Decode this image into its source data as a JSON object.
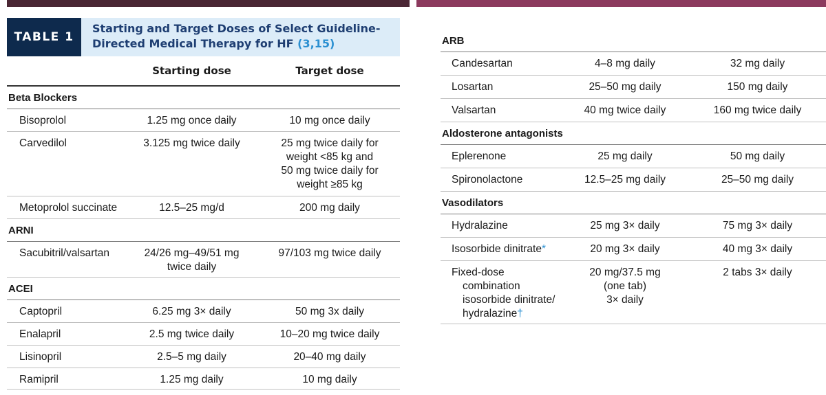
{
  "table_tag": "TABLE 1",
  "title_line1": "Starting and Target Doses of Select Guideline-",
  "title_line2": "Directed Medical Therapy for HF",
  "title_ref": "(3,15)",
  "columns": {
    "starting": "Starting dose",
    "target": "Target dose"
  },
  "sections": {
    "beta": "Beta Blockers",
    "arni": "ARNI",
    "acei": "ACEI",
    "arb": "ARB",
    "aldo": "Aldosterone antagonists",
    "vaso": "Vasodilators"
  },
  "rows": {
    "bisoprolol": {
      "drug": "Bisoprolol",
      "start": "1.25 mg once daily",
      "target": "10 mg once daily"
    },
    "carvedilol": {
      "drug": "Carvedilol",
      "start": "3.125 mg twice daily",
      "target_l1": "25 mg twice daily for",
      "target_l2": "weight <85 kg and",
      "target_l3": "50 mg twice daily for",
      "target_l4": "weight ≥85 kg"
    },
    "metoprolol": {
      "drug": "Metoprolol succinate",
      "start": "12.5–25 mg/d",
      "target": "200 mg daily"
    },
    "sacubitril": {
      "drug": "Sacubitril/valsartan",
      "start_l1": "24/26 mg–49/51 mg",
      "start_l2": "twice daily",
      "target": "97/103 mg twice daily"
    },
    "captopril": {
      "drug": "Captopril",
      "start": "6.25 mg 3× daily",
      "target": "50 mg 3x daily"
    },
    "enalapril": {
      "drug": "Enalapril",
      "start": "2.5 mg twice daily",
      "target": "10–20 mg twice daily"
    },
    "lisinopril": {
      "drug": "Lisinopril",
      "start": "2.5–5 mg daily",
      "target": "20–40 mg daily"
    },
    "ramipril": {
      "drug": "Ramipril",
      "start": "1.25 mg daily",
      "target": "10 mg daily"
    },
    "candesartan": {
      "drug": "Candesartan",
      "start": "4–8 mg daily",
      "target": "32 mg daily"
    },
    "losartan": {
      "drug": "Losartan",
      "start": "25–50 mg daily",
      "target": "150 mg daily"
    },
    "valsartan": {
      "drug": "Valsartan",
      "start": "40 mg twice daily",
      "target": "160 mg twice daily"
    },
    "eplerenone": {
      "drug": "Eplerenone",
      "start": "25 mg daily",
      "target": "50 mg daily"
    },
    "spironolactone": {
      "drug": "Spironolactone",
      "start": "12.5–25 mg daily",
      "target": "25–50 mg daily"
    },
    "hydralazine": {
      "drug": "Hydralazine",
      "start": "25 mg 3× daily",
      "target": "75 mg 3× daily"
    },
    "isosorbide": {
      "drug": "Isosorbide dinitrate",
      "mark": "*",
      "start": "20 mg 3× daily",
      "target": "40 mg 3× daily"
    },
    "fixed": {
      "drug_l1": "Fixed-dose",
      "drug_l2": "combination",
      "drug_l3": "isosorbide dinitrate/",
      "drug_l4": "hydralazine",
      "mark": "†",
      "start_l1": "20 mg/37.5 mg",
      "start_l2": "(one tab)",
      "start_l3": "3× daily",
      "target": "2 tabs 3× daily"
    }
  }
}
